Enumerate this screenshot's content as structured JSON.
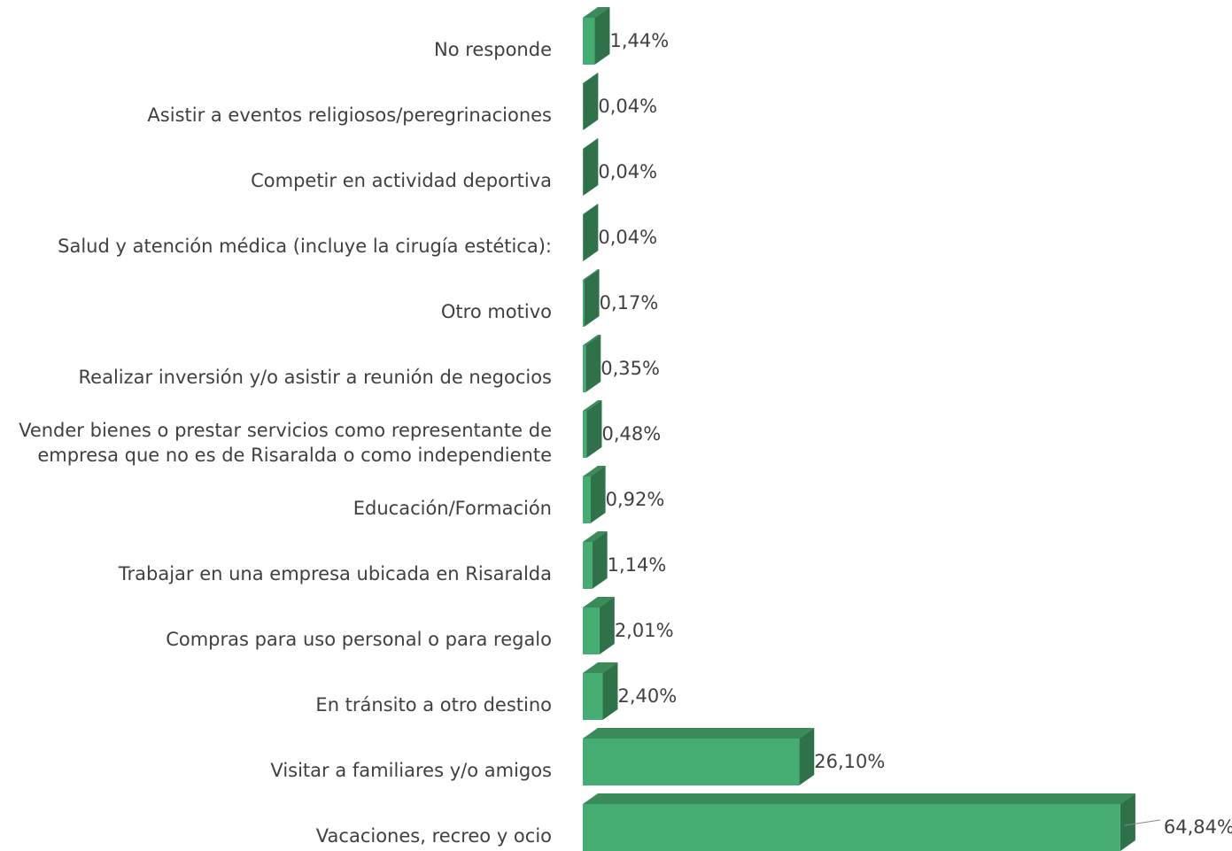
{
  "chart_data": {
    "type": "bar3d-horizontal",
    "categories": [
      "No responde",
      "Asistir a eventos religiosos/peregrinaciones",
      "Competir en actividad deportiva",
      "Salud y atención médica (incluye la cirugía estética):",
      "Otro motivo",
      "Realizar inversión y/o asistir a reunión de negocios",
      "Vender bienes o prestar servicios como representante de empresa que no es de Risaralda o como independiente",
      "Educación/Formación",
      "Trabajar en una empresa ubicada en Risaralda",
      "Compras para uso personal o para regalo",
      "En tránsito a otro destino",
      "Visitar a familiares y/o amigos",
      "Vacaciones, recreo y ocio"
    ],
    "values": [
      1.44,
      0.04,
      0.04,
      0.04,
      0.17,
      0.35,
      0.48,
      0.92,
      1.14,
      2.01,
      2.4,
      26.1,
      64.84
    ],
    "value_labels": [
      "1,44%",
      "0,04%",
      "0,04%",
      "0,04%",
      "0,17%",
      "0,35%",
      "0,48%",
      "0,92%",
      "1,14%",
      "2,01%",
      "2,40%",
      "26,10%",
      "64,84%"
    ],
    "color": "#46ad72"
  }
}
